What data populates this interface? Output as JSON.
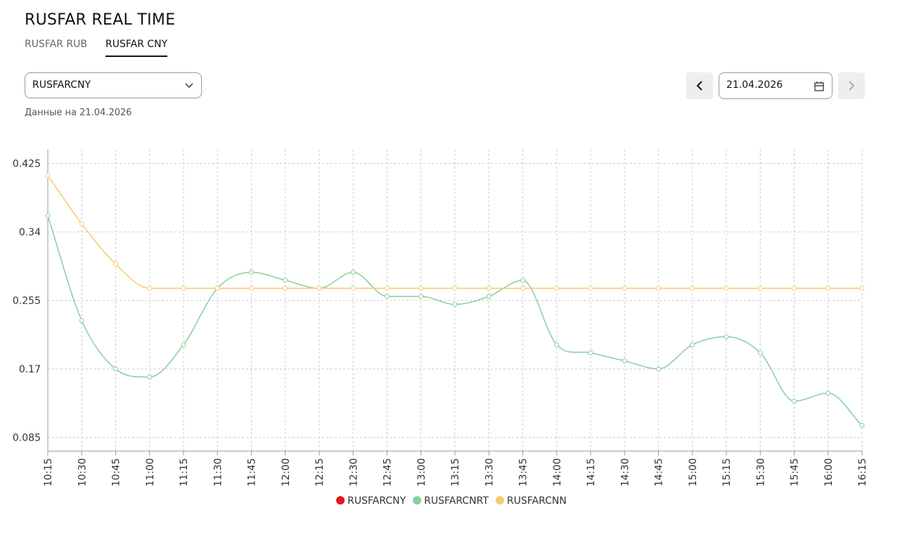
{
  "header": {
    "title": "RUSFAR REAL TIME",
    "tabs": [
      "RUSFAR RUB",
      "RUSFAR CNY"
    ],
    "active_tab": 1
  },
  "controls": {
    "select": "RUSFARCNY",
    "date": "21.04.2026",
    "note": "Данные на 21.04.2026"
  },
  "chart_data": {
    "type": "line",
    "categories": [
      "10:15",
      "10:30",
      "10:45",
      "11:00",
      "11:15",
      "11:30",
      "11:45",
      "12:00",
      "12:15",
      "12:30",
      "12:45",
      "13:00",
      "13:15",
      "13:30",
      "13:45",
      "14:00",
      "14:15",
      "14:30",
      "14:45",
      "15:00",
      "15:15",
      "15:30",
      "15:45",
      "16:00",
      "16:15"
    ],
    "series": [
      {
        "name": "RUSFARCNY",
        "color": "#e8141b",
        "values": [
          null,
          null,
          null,
          null,
          null,
          null,
          null,
          null,
          null,
          null,
          null,
          null,
          null,
          null,
          null,
          null,
          null,
          null,
          null,
          null,
          null,
          null,
          null,
          null,
          null
        ]
      },
      {
        "name": "RUSFARCNRT",
        "color": "#86cf9c",
        "values": [
          0.36,
          0.23,
          0.17,
          0.16,
          0.2,
          0.27,
          0.29,
          0.28,
          0.27,
          0.29,
          0.26,
          0.26,
          0.25,
          0.26,
          0.28,
          0.2,
          0.19,
          0.18,
          0.17,
          0.2,
          0.21,
          0.19,
          0.13,
          0.14,
          0.1
        ]
      },
      {
        "name": "RUSFARCNN",
        "color": "#f7cb6e",
        "values": [
          0.41,
          0.35,
          0.3,
          0.27,
          0.27,
          0.27,
          0.27,
          0.27,
          0.27,
          0.27,
          0.27,
          0.27,
          0.27,
          0.27,
          0.27,
          0.27,
          0.27,
          0.27,
          0.27,
          0.27,
          0.27,
          0.27,
          0.27,
          0.27,
          0.27
        ]
      }
    ],
    "ylim": [
      0.068,
      0.442
    ],
    "yticks": [
      0.085,
      0.17,
      0.255,
      0.34,
      0.425
    ],
    "grid": true,
    "legend": "bottom"
  }
}
